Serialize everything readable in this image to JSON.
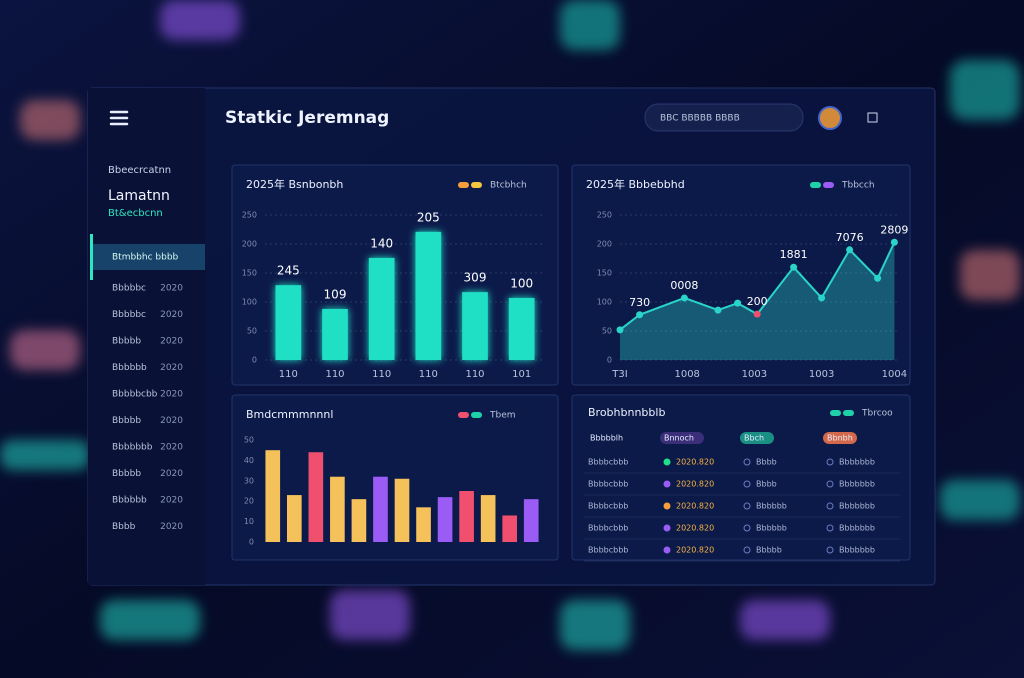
{
  "header": {
    "title": "Statkic Jeremnag",
    "search": "BBC  BBBBB  BBBB"
  },
  "sidebar": {
    "kicker": "Bbeecrcatnn",
    "title": "Lamatnn",
    "subtitle": "Bt&ecbcnn",
    "active": "Btmbbhc bbbb",
    "items": [
      [
        "Bbbbbc",
        "2020"
      ],
      [
        "Bbbbbc",
        "2020"
      ],
      [
        "Bbbbb",
        "2020"
      ],
      [
        "Bbbbbb",
        "2020"
      ],
      [
        "Bbbbbcbb",
        "2020"
      ],
      [
        "Bbbbb",
        "2020"
      ],
      [
        "Bbbbbbb",
        "2020"
      ],
      [
        "Bbbbb",
        "2020"
      ],
      [
        "Bbbbbb",
        "2020"
      ],
      [
        "Bbbb",
        "2020"
      ]
    ]
  },
  "charts": [
    {
      "type": "bar",
      "title": "2025年 Bsnbonbh",
      "legend": {
        "label": "Btcbhch",
        "colors": [
          "#f59e3b",
          "#f5c542"
        ]
      },
      "categories": [
        "110",
        "110",
        "110",
        "110",
        "110",
        "101"
      ],
      "values": [
        129,
        88,
        176,
        221,
        117,
        107
      ],
      "bar_labels": [
        "245",
        "109",
        "140",
        "205",
        "309",
        "100"
      ],
      "color": "#1fe0c4",
      "ylim": [
        0,
        250
      ],
      "yticks": [
        0,
        50,
        100,
        150,
        200,
        250
      ],
      "grid": true
    },
    {
      "type": "area",
      "title": "2025年 Bbbebbhd",
      "legend": {
        "label": "Tbbcch",
        "colors": [
          "#1fd1a8",
          "#9b5cf6"
        ]
      },
      "x": [
        0,
        7,
        23,
        35,
        42,
        49,
        62,
        72,
        82,
        92,
        98
      ],
      "values": [
        52,
        78,
        107,
        86,
        98,
        79,
        160,
        107,
        190,
        141,
        203
      ],
      "annotations": [
        "730",
        "0008",
        "200",
        "1881",
        "7076",
        "2809"
      ],
      "color": "#2ad4c8",
      "xlim": [
        0,
        100
      ],
      "xticks": [
        {
          "value": 0,
          "label": "T3I"
        },
        {
          "value": 24,
          "label": "1008"
        },
        {
          "value": 48,
          "label": "1003"
        },
        {
          "value": 72,
          "label": "1003"
        },
        {
          "value": 98,
          "label": "1004"
        }
      ],
      "ylim": [
        0,
        250
      ],
      "yticks": [
        0,
        50,
        100,
        150,
        200,
        250
      ],
      "grid": true
    },
    {
      "type": "bar",
      "title": "Bmdcmmmnnnl",
      "legend": {
        "label": "Tbem",
        "colors": [
          "#f0506e",
          "#1fd1a8"
        ]
      },
      "values": [
        45,
        23,
        44,
        32,
        21,
        32,
        31,
        17,
        22,
        25,
        23,
        13,
        21
      ],
      "colors": [
        "#f5c15a",
        "#f5c15a",
        "#f0506e",
        "#f5c15a",
        "#f5c15a",
        "#9b5cf6",
        "#f5c15a",
        "#f5c15a",
        "#9b5cf6",
        "#f0506e",
        "#f5c15a",
        "#f0506e",
        "#9b5cf6"
      ],
      "ylim": [
        0,
        50
      ],
      "yticks": [
        0,
        10,
        20,
        30,
        40,
        50
      ],
      "grid": false
    }
  ],
  "table": {
    "title": "Brobhbnnbblb",
    "legend": {
      "label": "Tbrcoo",
      "colors": [
        "#1fd1a8",
        "#1fd1a8"
      ]
    },
    "header": [
      "Bbbbblh",
      "Bnnoch",
      "Bbch",
      "Bbnbh"
    ],
    "rows": [
      [
        "Bbbbcbbb",
        "2020.820",
        "Bbbb",
        "Bbbbbbb"
      ],
      [
        "Bbbbcbbb",
        "2020.820",
        "Bbbb",
        "Bbbbbbb"
      ],
      [
        "Bbbbcbbb",
        "2020.820",
        "Bbbbbb",
        "Bbbbbbb"
      ],
      [
        "Bbbbcbbb",
        "2020.820",
        "Bbbbbb",
        "Bbbbbbb"
      ],
      [
        "Bbbbcbbb",
        "2020.820",
        "Bbbbb",
        "Bbbbbbb"
      ]
    ],
    "dot_colors": [
      "#22e08a",
      "#9b5cf6",
      "#f59e3b",
      "#9b5cf6",
      "#9b5cf6"
    ]
  }
}
